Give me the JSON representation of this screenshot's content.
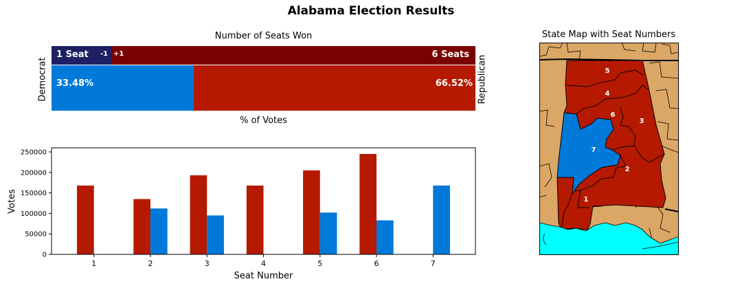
{
  "title": "Alabama Election Results",
  "seats_panel": {
    "title": "Number of Seats Won",
    "dem_seats_label": "1 Seat",
    "rep_seats_label": "6 Seats",
    "dem_change": "-1",
    "rep_change": "+1",
    "dem_vote_label": "33.48%",
    "rep_vote_label": "66.52%",
    "left_label": "Democrat",
    "right_label": "Republican",
    "xlabel": "% of Votes"
  },
  "map_panel": {
    "title": "State Map with Seat Numbers",
    "district_labels": [
      "5",
      "4",
      "6",
      "3",
      "7",
      "2",
      "1"
    ]
  },
  "colors": {
    "rep_seat": "#7b0000",
    "dem_seat": "#1f1f66",
    "rep_vote": "#b51a00",
    "dem_vote": "#0079d9",
    "map_land": "#dba766",
    "map_water": "#00ffff",
    "map_rep": "#b51a00",
    "map_dem": "#0079d9"
  },
  "chart_data": [
    {
      "type": "bar",
      "orientation": "horizontal-stacked",
      "series": [
        {
          "name": "Democrat",
          "seats": 1,
          "seat_change": -1,
          "vote_share_pct": 33.48
        },
        {
          "name": "Republican",
          "seats": 6,
          "seat_change": 1,
          "vote_share_pct": 66.52
        }
      ],
      "total_seats": 7
    },
    {
      "type": "bar",
      "xlabel": "Seat Number",
      "ylabel": "Votes",
      "categories": [
        "1",
        "2",
        "3",
        "4",
        "5",
        "6",
        "7"
      ],
      "series": [
        {
          "values": [
            168000,
            135000,
            193000,
            168000,
            205000,
            245000,
            0
          ]
        },
        {
          "values": [
            0,
            112000,
            95000,
            0,
            102000,
            83000,
            168000
          ]
        }
      ],
      "ylim": [
        0,
        260000
      ],
      "yticks": [
        0,
        50000,
        100000,
        150000,
        200000,
        250000
      ],
      "grid": false
    }
  ]
}
